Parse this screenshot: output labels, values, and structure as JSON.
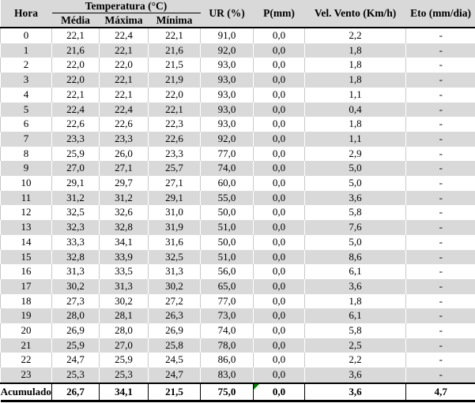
{
  "table": {
    "headers": {
      "hora": "Hora",
      "temperatura_group": "Temperatura (°C)",
      "media": "Média",
      "maxima": "Máxima",
      "minima": "Mínima",
      "ur": "UR (%)",
      "p": "P(mm)",
      "vel_vento": "Vel. Vento (Km/h)",
      "eto": "Eto (mm/dia)"
    },
    "rows": [
      [
        "0",
        "22,1",
        "22,4",
        "22,1",
        "91,0",
        "0,0",
        "2,2",
        "-"
      ],
      [
        "1",
        "21,6",
        "22,1",
        "21,6",
        "92,0",
        "0,0",
        "1,8",
        "-"
      ],
      [
        "2",
        "22,0",
        "22,0",
        "21,5",
        "93,0",
        "0,0",
        "1,8",
        "-"
      ],
      [
        "3",
        "22,0",
        "22,1",
        "21,9",
        "93,0",
        "0,0",
        "1,8",
        "-"
      ],
      [
        "4",
        "22,1",
        "22,1",
        "22,0",
        "93,0",
        "0,0",
        "1,1",
        "-"
      ],
      [
        "5",
        "22,4",
        "22,4",
        "22,1",
        "93,0",
        "0,0",
        "0,4",
        "-"
      ],
      [
        "6",
        "22,6",
        "22,6",
        "22,3",
        "93,0",
        "0,0",
        "1,8",
        "-"
      ],
      [
        "7",
        "23,3",
        "23,3",
        "22,6",
        "92,0",
        "0,0",
        "1,1",
        "-"
      ],
      [
        "8",
        "25,9",
        "26,0",
        "23,3",
        "77,0",
        "0,0",
        "2,9",
        "-"
      ],
      [
        "9",
        "27,0",
        "27,1",
        "25,7",
        "74,0",
        "0,0",
        "5,0",
        "-"
      ],
      [
        "10",
        "29,1",
        "29,7",
        "27,1",
        "60,0",
        "0,0",
        "5,0",
        "-"
      ],
      [
        "11",
        "31,2",
        "31,2",
        "29,1",
        "55,0",
        "0,0",
        "3,6",
        "-"
      ],
      [
        "12",
        "32,5",
        "32,6",
        "31,0",
        "50,0",
        "0,0",
        "5,8",
        "-"
      ],
      [
        "13",
        "32,3",
        "32,8",
        "31,9",
        "51,0",
        "0,0",
        "7,6",
        "-"
      ],
      [
        "14",
        "33,3",
        "34,1",
        "31,6",
        "50,0",
        "0,0",
        "5,0",
        "-"
      ],
      [
        "15",
        "32,8",
        "33,9",
        "32,5",
        "51,0",
        "0,0",
        "8,6",
        "-"
      ],
      [
        "16",
        "31,3",
        "33,5",
        "31,3",
        "56,0",
        "0,0",
        "6,1",
        "-"
      ],
      [
        "17",
        "30,2",
        "31,3",
        "30,2",
        "65,0",
        "0,0",
        "3,6",
        "-"
      ],
      [
        "18",
        "27,3",
        "30,2",
        "27,2",
        "77,0",
        "0,0",
        "1,8",
        "-"
      ],
      [
        "19",
        "28,0",
        "28,1",
        "26,3",
        "73,0",
        "0,0",
        "6,1",
        "-"
      ],
      [
        "20",
        "26,9",
        "28,0",
        "26,9",
        "74,0",
        "0,0",
        "5,8",
        "-"
      ],
      [
        "21",
        "25,9",
        "27,0",
        "25,8",
        "78,0",
        "0,0",
        "2,5",
        "-"
      ],
      [
        "22",
        "24,7",
        "25,9",
        "24,5",
        "86,0",
        "0,0",
        "2,2",
        "-"
      ],
      [
        "23",
        "25,3",
        "25,3",
        "24,7",
        "83,0",
        "0,0",
        "3,6",
        "-"
      ]
    ],
    "footer": {
      "label": "Acumulado",
      "media": "26,7",
      "maxima": "34,1",
      "minima": "21,5",
      "ur": "75,0",
      "p": "0,0",
      "vel_vento": "3,6",
      "eto": "4,7"
    },
    "colors": {
      "header_fill": "#d9d9d9",
      "row_alt_fill": "#d9d9d9",
      "grid_on_white_rows": "#c9c9c9",
      "grid_on_gray_rows": "#ffffff",
      "border_black": "#000000",
      "cell_flag_green": "#008000"
    }
  }
}
